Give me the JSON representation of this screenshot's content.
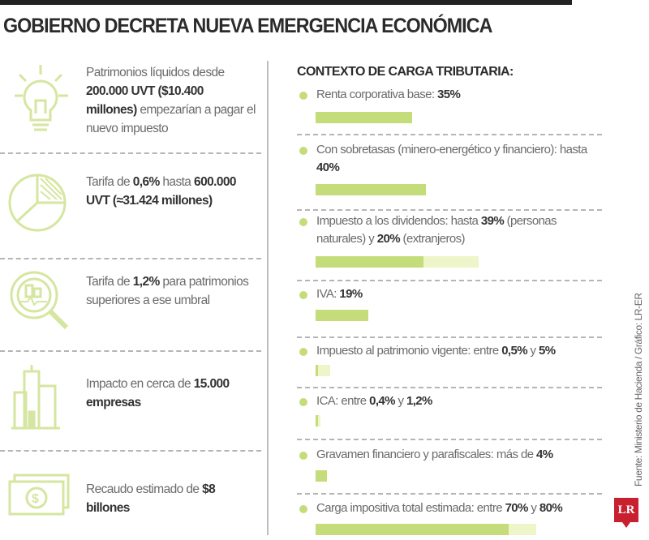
{
  "title": "GOBIERNO DECRETA NUEVA EMERGENCIA ECONÓMICA",
  "colors": {
    "accent": "#c5dc7a",
    "accent_light": "#eef5c8",
    "logo": "#c8202f"
  },
  "left_items": [
    {
      "icon": "lightbulb-icon",
      "parts": [
        {
          "t": "Patrimonios líquidos desde ",
          "b": false
        },
        {
          "t": "200.000 UVT ($10.400 millones)",
          "b": true
        },
        {
          "t": " empezarían a pagar el nuevo impuesto",
          "b": false
        }
      ]
    },
    {
      "icon": "pie-chart-icon",
      "parts": [
        {
          "t": "Tarifa de ",
          "b": false
        },
        {
          "t": "0,6%",
          "b": true
        },
        {
          "t": " hasta ",
          "b": false
        },
        {
          "t": "600.000 UVT (≈31.424 millones)",
          "b": true
        }
      ]
    },
    {
      "icon": "magnifier-chart-icon",
      "parts": [
        {
          "t": "Tarifa de ",
          "b": false
        },
        {
          "t": "1,2%",
          "b": true
        },
        {
          "t": " para patrimonios superiores a ese umbral",
          "b": false
        }
      ]
    },
    {
      "icon": "buildings-icon",
      "parts": [
        {
          "t": "Impacto en cerca de ",
          "b": false
        },
        {
          "t": "15.000 empresas",
          "b": true
        }
      ]
    },
    {
      "icon": "banknote-icon",
      "parts": [
        {
          "t": "Recaudo estimado de ",
          "b": false
        },
        {
          "t": "$8 billones",
          "b": true
        }
      ]
    }
  ],
  "right": {
    "heading": "CONTEXTO DE CARGA TRIBUTARIA:",
    "items": [
      {
        "parts": [
          {
            "t": "Renta corporativa base: ",
            "b": false
          },
          {
            "t": "35%",
            "b": true
          }
        ],
        "value": 35,
        "value2": null
      },
      {
        "parts": [
          {
            "t": "Con sobretasas (minero-energético y financiero): hasta ",
            "b": false
          },
          {
            "t": "40%",
            "b": true
          }
        ],
        "value": 40,
        "value2": null
      },
      {
        "parts": [
          {
            "t": "Impuesto a los dividendos: hasta ",
            "b": false
          },
          {
            "t": "39%",
            "b": true
          },
          {
            "t": " (personas naturales) y ",
            "b": false
          },
          {
            "t": "20%",
            "b": true
          },
          {
            "t": " (extranjeros)",
            "b": false
          }
        ],
        "value": 39,
        "value2": 20
      },
      {
        "parts": [
          {
            "t": "IVA: ",
            "b": false
          },
          {
            "t": "19%",
            "b": true
          }
        ],
        "value": 19,
        "value2": null
      },
      {
        "parts": [
          {
            "t": "Impuesto al patrimonio vigente: entre ",
            "b": false
          },
          {
            "t": "0,5%",
            "b": true
          },
          {
            "t": " y ",
            "b": false
          },
          {
            "t": "5%",
            "b": true
          }
        ],
        "value": 0.5,
        "value2": 4.5
      },
      {
        "parts": [
          {
            "t": "ICA: entre ",
            "b": false
          },
          {
            "t": "0,4%",
            "b": true
          },
          {
            "t": " y ",
            "b": false
          },
          {
            "t": "1,2%",
            "b": true
          }
        ],
        "value": 0.4,
        "value2": 0.8
      },
      {
        "parts": [
          {
            "t": "Gravamen financiero y parafiscales: más de ",
            "b": false
          },
          {
            "t": "4%",
            "b": true
          }
        ],
        "value": 4,
        "value2": null
      },
      {
        "parts": [
          {
            "t": "Carga impositiva total estimada: entre ",
            "b": false
          },
          {
            "t": "70%",
            "b": true
          },
          {
            "t": " y ",
            "b": false
          },
          {
            "t": "80%",
            "b": true
          }
        ],
        "value": 70,
        "value2": 10
      }
    ]
  },
  "credit": "Fuente: Ministerio de Hacienda / Gráfico: LR-ER",
  "logo_text": "LR"
}
